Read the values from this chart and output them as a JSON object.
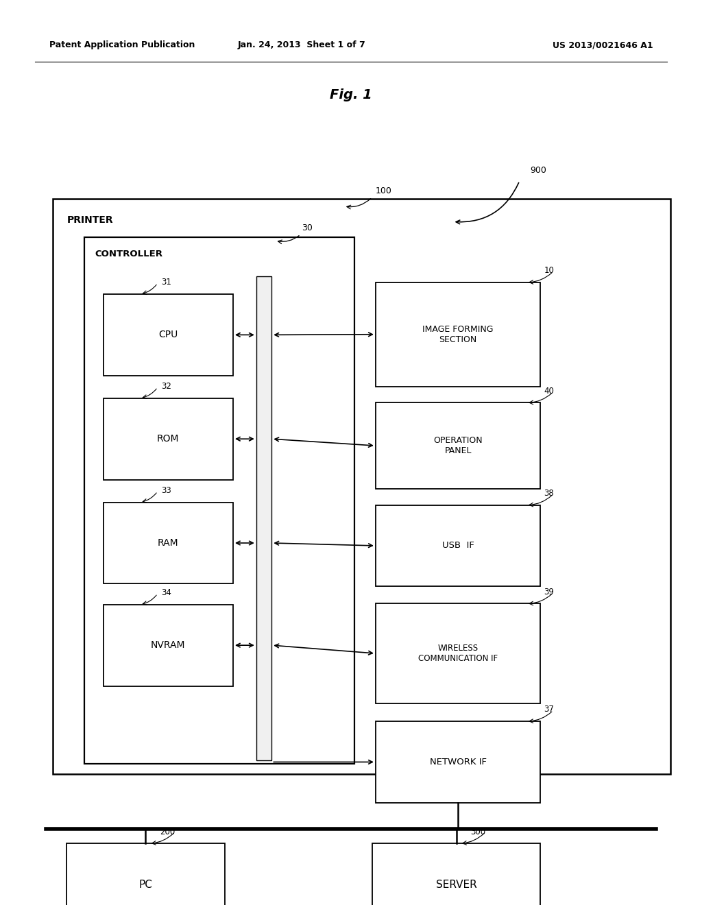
{
  "bg_color": "#ffffff",
  "header_left": "Patent Application Publication",
  "header_mid": "Jan. 24, 2013  Sheet 1 of 7",
  "header_right": "US 2013/0021646 A1",
  "fig_title": "Fig. 1",
  "printer_label": "PRINTER",
  "controller_label": "CONTROLLER",
  "labels": {
    "cpu": "CPU",
    "rom": "ROM",
    "ram": "RAM",
    "nvram": "NVRAM",
    "image_forming": "IMAGE FORMING\nSECTION",
    "operation_panel": "OPERATION\nPANEL",
    "usb_if": "USB  IF",
    "wireless_comm": "WIRELESS\nCOMMUNICATION IF",
    "network_if": "NETWORK IF",
    "pc": "PC",
    "server": "SERVER"
  }
}
